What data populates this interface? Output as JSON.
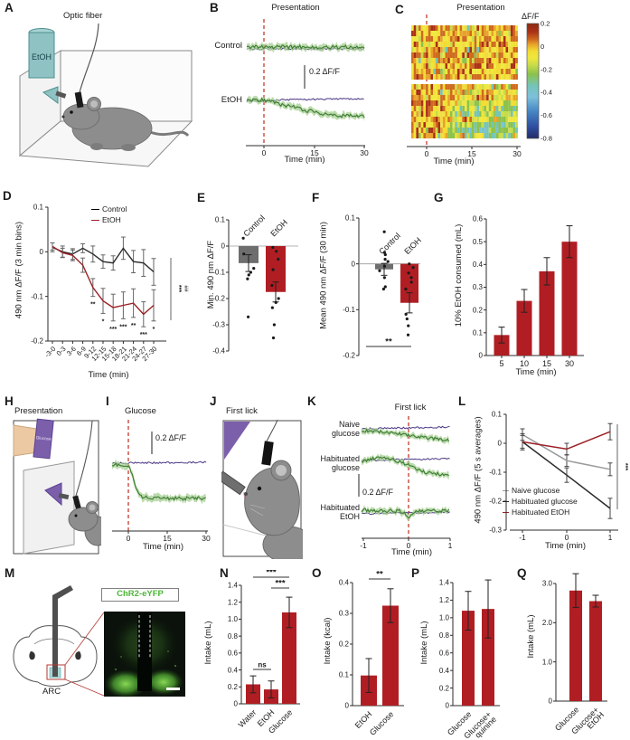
{
  "colors": {
    "black": "#2b2b2b",
    "dark_red": "#9c2026",
    "red_bar": "#b01e23",
    "gray_bar": "#6e6e6e",
    "gray_line": "#9a9a9a",
    "green": "#3c7a33",
    "green_light": "#a6cf92",
    "purple": "#4b3585",
    "dash_red": "#c23b2e",
    "teal": "#8fc3c3",
    "teal_dark": "#4e8f8f",
    "glucose_purple": "#7c5fab",
    "eyfp_green": "#4cb636",
    "hand": "#ecc9a3",
    "mouse_gray": "#8d8d8d",
    "tongue_pink": "#e59ec2",
    "heat_low": "#222c66",
    "heat_stops": [
      [
        0.13,
        "#a93016"
      ],
      [
        0.06,
        "#cf6a1e"
      ],
      [
        0.02,
        "#e8a22a"
      ],
      [
        -0.04,
        "#f2dc33"
      ],
      [
        -0.1,
        "#efe73e"
      ],
      [
        -0.16,
        "#c8dc4a"
      ],
      [
        -0.24,
        "#8cc24a"
      ],
      [
        -0.34,
        "#74c4b8"
      ],
      [
        -0.44,
        "#7cc0dc"
      ],
      [
        -0.56,
        "#4788c4"
      ],
      [
        -0.7,
        "#2f4da0"
      ]
    ]
  },
  "panels": {
    "A": {
      "label": "A",
      "fiber": "Optic fiber",
      "bottle": "EtOH"
    },
    "B": {
      "label": "B",
      "title": "Presentation",
      "row1": "Control",
      "row2": "EtOH",
      "scale": "0.2 ΔF/F",
      "xlabel": "Time (min)",
      "xticks": [
        "0",
        "15",
        "30"
      ]
    },
    "C": {
      "label": "C",
      "title": "Presentation",
      "cbar": "ΔF/F",
      "cbar_ticks": [
        "0.2",
        "0",
        "-0.2",
        "-0.4",
        "-0.6",
        "-0.8"
      ],
      "xlabel": "Time (min)",
      "xticks": [
        "0",
        "15",
        "30"
      ]
    },
    "D": {
      "label": "D"
    },
    "E": {
      "label": "E"
    },
    "F": {
      "label": "F"
    },
    "G": {
      "label": "G"
    },
    "H": {
      "label": "H",
      "title": "Presentation",
      "bottle": "Glucose"
    },
    "I": {
      "label": "I",
      "title": "Glucose",
      "scale": "0.2 ΔF/F",
      "xlabel": "Time (min)",
      "xticks": [
        "0",
        "15",
        "30"
      ]
    },
    "J": {
      "label": "J",
      "title": "First lick"
    },
    "K": {
      "label": "K",
      "title": "First lick",
      "rows": [
        [
          "Naive",
          "glucose"
        ],
        [
          "Habituated",
          "glucose"
        ],
        [
          "Habituated",
          "EtOH"
        ]
      ],
      "scale": "0.2 ΔF/F",
      "xlabel": "Time (min)",
      "xticks": [
        "-1",
        "0",
        "1"
      ]
    },
    "L": {
      "label": "L"
    },
    "M": {
      "label": "M",
      "tag": "ChR2-eYFP",
      "region": "ARC"
    },
    "N": {
      "label": "N"
    },
    "O": {
      "label": "O"
    },
    "P": {
      "label": "P"
    },
    "Q": {
      "label": "Q"
    }
  },
  "chart_data": [
    {
      "panel": "D",
      "type": "line",
      "ylabel": "490 nm ΔF/F (3 min bins)",
      "xlabel": "Time (min)",
      "categories": [
        "-3-0",
        "0-3",
        "3-6",
        "6-9",
        "9-12",
        "12-15",
        "15-18",
        "18-21",
        "21-24",
        "24-27",
        "27-30"
      ],
      "ylim": [
        -0.2,
        0.1
      ],
      "yticks": [
        "0.1",
        "0",
        "-0.1",
        "-0.2"
      ],
      "series": [
        {
          "name": "Control",
          "color_key": "black",
          "values": [
            0.01,
            0.0,
            -0.005,
            0.008,
            -0.005,
            -0.022,
            -0.025,
            0.008,
            -0.022,
            -0.025,
            -0.045
          ],
          "errors": [
            0.01,
            0.013,
            0.012,
            0.01,
            0.018,
            0.015,
            0.016,
            0.025,
            0.025,
            0.03,
            0.03
          ]
        },
        {
          "name": "EtOH",
          "color_key": "dark_red",
          "values": [
            0.012,
            -0.002,
            -0.008,
            -0.03,
            -0.08,
            -0.11,
            -0.125,
            -0.12,
            -0.115,
            -0.14,
            -0.12
          ],
          "errors": [
            0.008,
            0.01,
            0.012,
            0.016,
            0.02,
            0.028,
            0.03,
            0.03,
            0.032,
            0.028,
            0.035
          ]
        }
      ],
      "point_sig": [
        "",
        "",
        "",
        "",
        "**",
        "*",
        "***",
        "***",
        "**",
        "***",
        "*"
      ],
      "group_sig": [
        "***",
        "##"
      ]
    },
    {
      "panel": "E",
      "type": "bar",
      "ylabel": "Min. 490 nm ΔF/F",
      "categories": [
        "Control",
        "EtOH"
      ],
      "values": [
        -0.065,
        -0.175
      ],
      "errors": [
        0.032,
        0.038
      ],
      "bar_colors": [
        "gray_bar",
        "red_bar"
      ],
      "ylim": [
        -0.4,
        0.1
      ],
      "yticks": [
        "0.1",
        "0",
        "-0.1",
        "-0.2",
        "-0.3",
        "-0.4"
      ],
      "points": [
        [
          0.03,
          -0.03,
          -0.085,
          -0.1,
          -0.11,
          -0.125,
          -0.27
        ],
        [
          -0.005,
          -0.02,
          -0.05,
          -0.09,
          -0.15,
          -0.2,
          -0.215,
          -0.235,
          -0.3,
          -0.35
        ]
      ]
    },
    {
      "panel": "F",
      "type": "bar",
      "ylabel": "Mean 490 nm ΔF/F (30 min)",
      "categories": [
        "Control",
        "EtOH"
      ],
      "values": [
        -0.012,
        -0.085
      ],
      "errors": [
        0.013,
        0.022
      ],
      "bar_colors": [
        "gray_bar",
        "red_bar"
      ],
      "ylim": [
        -0.2,
        0.1
      ],
      "yticks": [
        "0.1",
        "0",
        "-0.1",
        "-0.2"
      ],
      "points": [
        [
          0.07,
          0.025,
          0.02,
          0.01,
          0.005,
          -0.005,
          -0.015,
          -0.03,
          -0.05,
          -0.055
        ],
        [
          0.0,
          -0.008,
          -0.02,
          -0.03,
          -0.04,
          -0.055,
          -0.11,
          -0.12,
          -0.135,
          -0.155
        ]
      ],
      "sig": [
        {
          "pair": [
            0,
            1
          ],
          "label": "**"
        }
      ]
    },
    {
      "panel": "G",
      "type": "bar",
      "ylabel": "10% EtOH consumed (mL)",
      "xlabel": "Time (min)",
      "categories": [
        "5",
        "10",
        "15",
        "30"
      ],
      "values": [
        0.09,
        0.24,
        0.37,
        0.5
      ],
      "errors": [
        0.035,
        0.05,
        0.06,
        0.07
      ],
      "bar_colors": [
        "red_bar",
        "red_bar",
        "red_bar",
        "red_bar"
      ],
      "ylim": [
        0,
        0.6
      ],
      "yticks": [
        "0",
        "0.1",
        "0.2",
        "0.3",
        "0.4",
        "0.5",
        "0.6"
      ]
    },
    {
      "panel": "L",
      "type": "line",
      "ylabel": "490 nm ΔF/F (5 s averages)",
      "xlabel": "Time (min)",
      "x": [
        -1,
        0,
        1
      ],
      "xticks": [
        "-1",
        "0",
        "1"
      ],
      "ylim": [
        -0.3,
        0.1
      ],
      "yticks": [
        "0.1",
        "0",
        "-0.1",
        "-0.2",
        "-0.3"
      ],
      "series": [
        {
          "name": "Naive glucose",
          "color_key": "gray_line",
          "values": [
            0.03,
            -0.06,
            -0.09
          ],
          "errors": [
            0.02,
            0.02,
            0.022
          ]
        },
        {
          "name": "Habituated glucose",
          "color_key": "black",
          "values": [
            0.005,
            -0.11,
            -0.225
          ],
          "errors": [
            0.022,
            0.025,
            0.035
          ]
        },
        {
          "name": "Habituated EtOH",
          "color_key": "dark_red",
          "values": [
            0.005,
            -0.02,
            0.04
          ],
          "errors": [
            0.028,
            0.02,
            0.028
          ]
        }
      ],
      "group_sig": [
        "***",
        "ooo"
      ]
    },
    {
      "panel": "N",
      "type": "bar",
      "ylabel": "Intake (mL)",
      "categories": [
        "Water",
        "EtOH",
        "Glucose"
      ],
      "values": [
        0.23,
        0.17,
        1.08
      ],
      "errors": [
        0.1,
        0.1,
        0.18
      ],
      "bar_colors": [
        "red_bar",
        "red_bar",
        "red_bar"
      ],
      "ylim": [
        0,
        1.4
      ],
      "yticks": [
        "0",
        "0.2",
        "0.4",
        "0.6",
        "0.8",
        "1.0",
        "1.2",
        "1.4"
      ],
      "sig": [
        {
          "pair": [
            0,
            2
          ],
          "label": "***"
        },
        {
          "pair": [
            1,
            2
          ],
          "label": "***"
        },
        {
          "pair": [
            0,
            1
          ],
          "label": "ns"
        }
      ]
    },
    {
      "panel": "O",
      "type": "bar",
      "ylabel": "Intake (kcal)",
      "categories": [
        "EtOH",
        "Glucose"
      ],
      "values": [
        0.098,
        0.325
      ],
      "errors": [
        0.055,
        0.055
      ],
      "bar_colors": [
        "red_bar",
        "red_bar"
      ],
      "ylim": [
        0,
        0.4
      ],
      "yticks": [
        "0",
        "0.1",
        "0.2",
        "0.3",
        "0.4"
      ],
      "sig": [
        {
          "pair": [
            0,
            1
          ],
          "label": "**"
        }
      ]
    },
    {
      "panel": "P",
      "type": "bar",
      "ylabel": "Intake (mL)",
      "categories": [
        "Glucose",
        "Glucose+\nquinine"
      ],
      "values": [
        1.08,
        1.1
      ],
      "errors": [
        0.22,
        0.33
      ],
      "bar_colors": [
        "red_bar",
        "red_bar"
      ],
      "ylim": [
        0,
        1.4
      ],
      "yticks": [
        "0",
        "0.2",
        "0.4",
        "0.6",
        "0.8",
        "1.0",
        "1.2",
        "1.4"
      ]
    },
    {
      "panel": "Q",
      "type": "bar",
      "ylabel": "Intake (mL)",
      "categories": [
        "Glucose",
        "Glucose+\nEtOH"
      ],
      "values": [
        2.82,
        2.55
      ],
      "errors": [
        0.43,
        0.15
      ],
      "bar_colors": [
        "red_bar",
        "red_bar"
      ],
      "ylim": [
        0,
        3.0
      ],
      "yticks": [
        "0",
        "1.0",
        "2.0",
        "3.0"
      ]
    }
  ]
}
